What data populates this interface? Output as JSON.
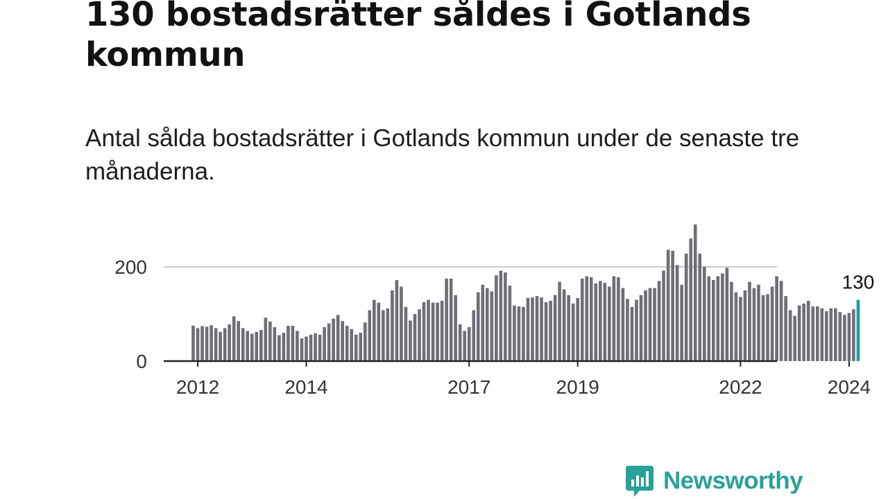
{
  "title": "130 bostadsrätter såldes i Gotlands kommun",
  "subtitle": "Antal sålda bostadsrätter i Gotlands kommun under de senaste tre månaderna.",
  "brand": {
    "name": "Newsworthy"
  },
  "colors": {
    "bar": "#6e6e76",
    "highlight": "#1a9e9a",
    "grid": "#cccccc",
    "axis": "#222222",
    "brand": "#2aa198"
  },
  "chart_data": {
    "type": "bar",
    "x_start": "2011-12",
    "x_end": "2024-04",
    "x_ticks": [
      "2012",
      "2014",
      "2017",
      "2019",
      "2022",
      "2024"
    ],
    "y_ticks": [
      0,
      200
    ],
    "ylim": [
      0,
      300
    ],
    "grid": true,
    "values": [
      75,
      70,
      74,
      73,
      76,
      70,
      62,
      70,
      78,
      95,
      85,
      70,
      64,
      58,
      62,
      66,
      92,
      84,
      72,
      55,
      60,
      75,
      75,
      64,
      48,
      52,
      56,
      59,
      56,
      72,
      80,
      90,
      98,
      85,
      75,
      68,
      56,
      60,
      82,
      108,
      130,
      124,
      108,
      112,
      150,
      172,
      158,
      115,
      86,
      100,
      110,
      125,
      130,
      124,
      124,
      128,
      175,
      175,
      140,
      78,
      64,
      72,
      108,
      146,
      162,
      155,
      148,
      182,
      192,
      188,
      160,
      118,
      116,
      115,
      134,
      135,
      138,
      135,
      125,
      128,
      140,
      168,
      152,
      140,
      122,
      134,
      175,
      180,
      178,
      165,
      170,
      166,
      158,
      180,
      178,
      155,
      132,
      115,
      130,
      140,
      150,
      155,
      155,
      170,
      192,
      236,
      234,
      204,
      162,
      228,
      260,
      290,
      228,
      200,
      180,
      172,
      180,
      186,
      198,
      168,
      146,
      136,
      150,
      168,
      155,
      162,
      140,
      142,
      158,
      180,
      170,
      138,
      108,
      96,
      118,
      122,
      128,
      116,
      116,
      112,
      106,
      112,
      112,
      104,
      98,
      102,
      110,
      130
    ],
    "highlight_label": "130"
  }
}
